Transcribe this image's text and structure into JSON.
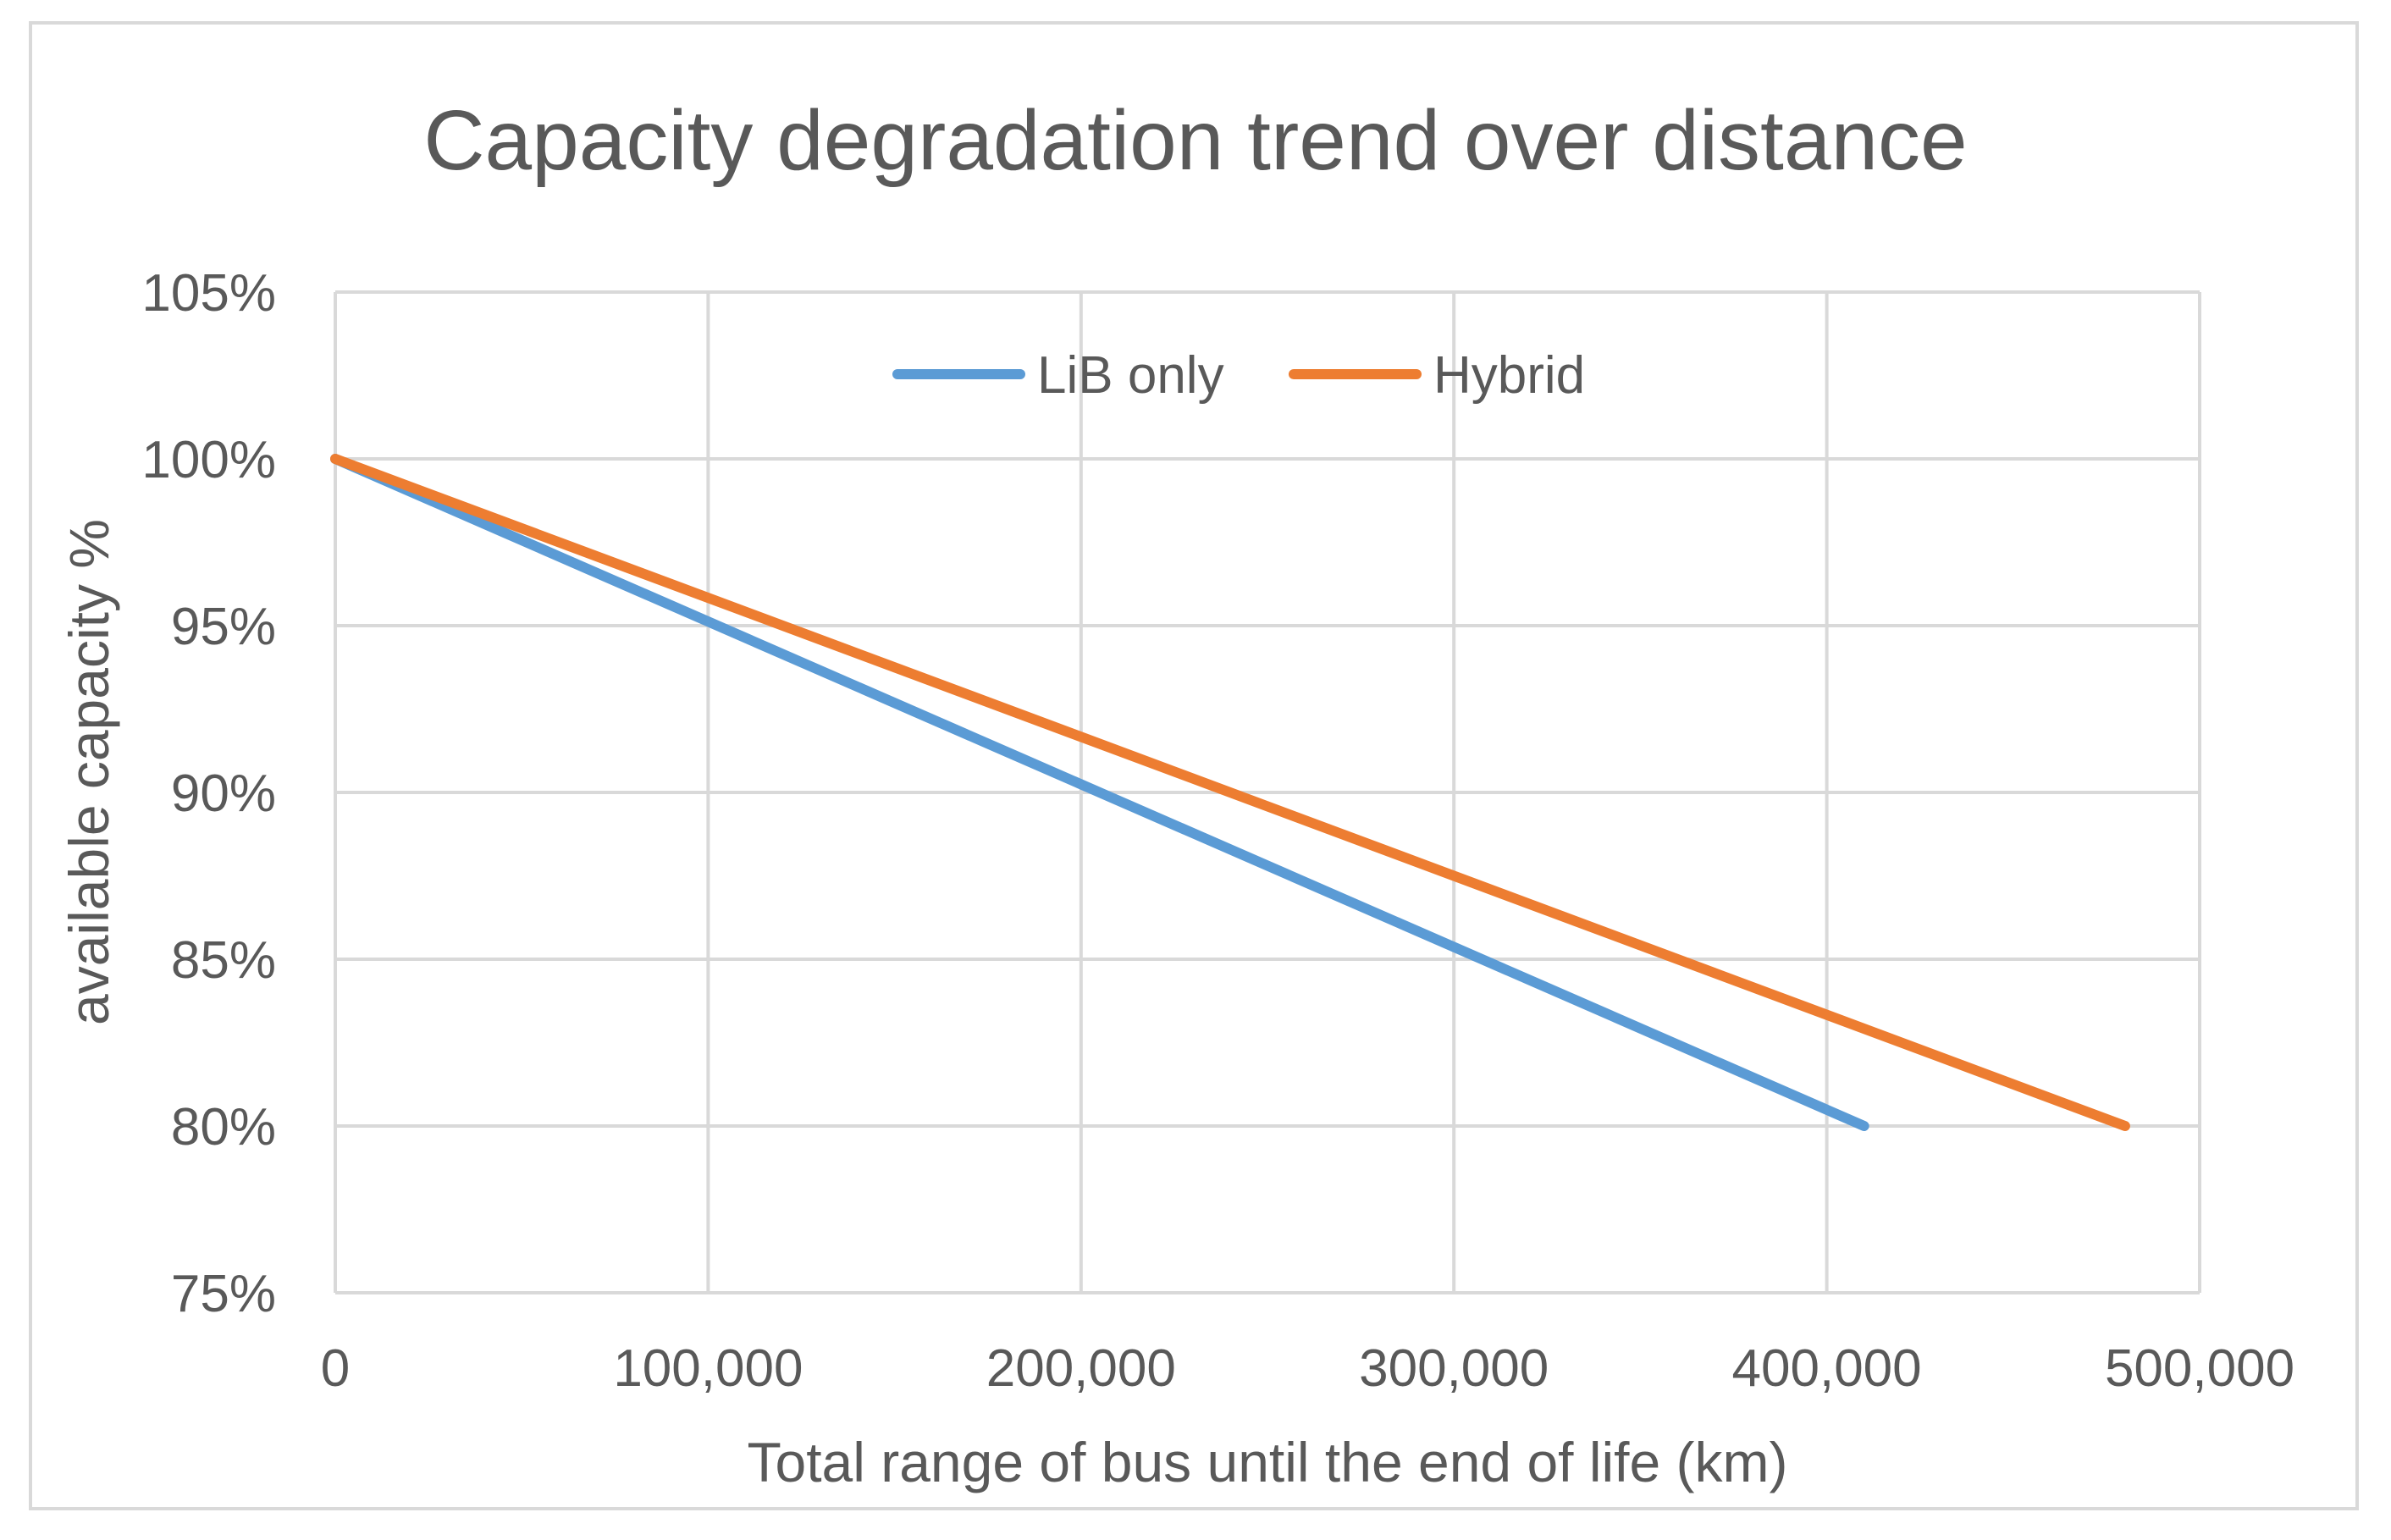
{
  "chart_data": {
    "type": "line",
    "title": "Capacity degradation trend over distance",
    "xlabel": "Total range of bus until the end of life (km)",
    "ylabel": "available capacity %",
    "xlim": [
      0,
      500000
    ],
    "ylim": [
      75,
      105
    ],
    "x_ticks": [
      0,
      100000,
      200000,
      300000,
      400000,
      500000
    ],
    "x_tick_labels": [
      "0",
      "100,000",
      "200,000",
      "300,000",
      "400,000",
      "500,000"
    ],
    "y_ticks": [
      75,
      80,
      85,
      90,
      95,
      100,
      105
    ],
    "y_tick_labels": [
      "75%",
      "80%",
      "85%",
      "90%",
      "95%",
      "100%",
      "105%"
    ],
    "grid": true,
    "legend_position": "top-center",
    "series": [
      {
        "name": "LiB only",
        "color": "#5b9bd5",
        "x": [
          0,
          410000
        ],
        "y": [
          100,
          80
        ]
      },
      {
        "name": "Hybrid",
        "color": "#ed7d31",
        "x": [
          0,
          480000
        ],
        "y": [
          100,
          80
        ]
      }
    ]
  }
}
